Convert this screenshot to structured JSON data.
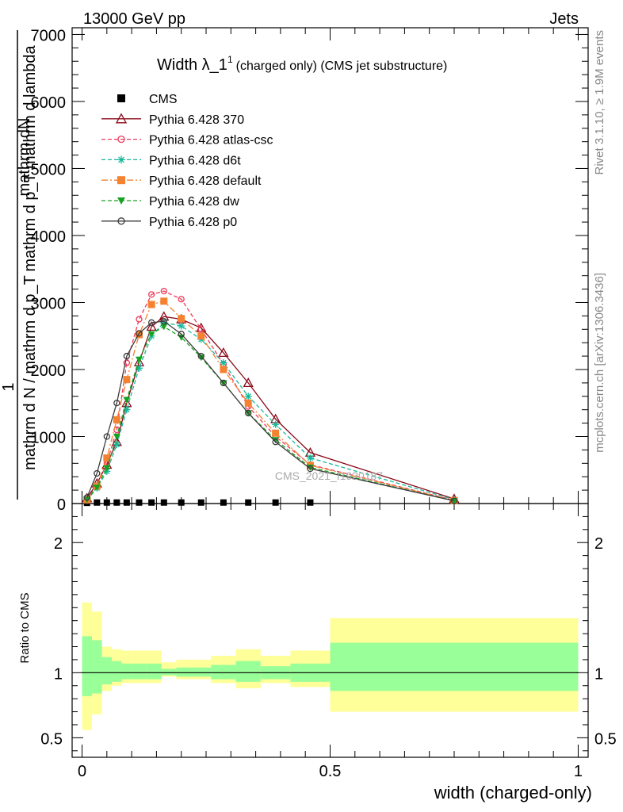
{
  "header": {
    "left": "13000 GeV pp",
    "right": "Jets"
  },
  "title": {
    "main": "Width λ_1",
    "sup": "1",
    "rest": "(charged only) (CMS jet substructure)"
  },
  "side_labels": {
    "right_top": "Rivet 3.1.10, ≥ 1.9M events",
    "right_bottom": "mcplots.cern.ch [arXiv:1306.3436]"
  },
  "watermark": "CMS_2021_I1920187",
  "ylabel_main": {
    "num_one": "1",
    "num_rest": "mathrm dN",
    "num_second": "mathrm d p_T mathrm d lambda",
    "den": "mathrm d N / mathrm d p_T"
  },
  "ratio_ylabel": "Ratio to CMS",
  "xlabel": "width (charged-only)",
  "chart_data": [
    {
      "type": "line",
      "panel": "main",
      "xlim": [
        -0.02,
        1.02
      ],
      "ylim": [
        0,
        7100
      ],
      "yticks": [
        0,
        1000,
        2000,
        3000,
        4000,
        5000,
        6000,
        7000
      ],
      "ytick_labels": [
        "0",
        "1000",
        "2000",
        "3000",
        "4000",
        "5000",
        "6000",
        "7000"
      ],
      "x": [
        0.01,
        0.03,
        0.05,
        0.07,
        0.09,
        0.115,
        0.14,
        0.165,
        0.2,
        0.24,
        0.285,
        0.335,
        0.39,
        0.46,
        0.75
      ],
      "series": [
        {
          "name": "CMS",
          "color": "#000000",
          "marker": "square",
          "dash": "none",
          "values": [
            10,
            15,
            15,
            15,
            15,
            15,
            15,
            15,
            15,
            15,
            15,
            15,
            15,
            15,
            null
          ]
        },
        {
          "name": "Pythia 6.428 370",
          "color": "#8b0a1a",
          "marker": "triangle",
          "dash": "solid",
          "values": [
            80,
            300,
            580,
            920,
            1500,
            2110,
            2640,
            2790,
            2750,
            2620,
            2250,
            1800,
            1260,
            760,
            70
          ]
        },
        {
          "name": "Pythia 6.428 atlas-csc",
          "color": "#ee3a5a",
          "marker": "circle",
          "dash": "dashed",
          "values": [
            60,
            260,
            600,
            1100,
            2100,
            2750,
            3120,
            3170,
            3050,
            2600,
            2080,
            1450,
            1000,
            580,
            50
          ]
        },
        {
          "name": "Pythia 6.428 d6t",
          "color": "#17b89a",
          "marker": "asterisk",
          "dash": "dashed",
          "values": [
            50,
            230,
            480,
            880,
            1400,
            2020,
            2500,
            2700,
            2650,
            2450,
            2100,
            1600,
            1180,
            680,
            60
          ]
        },
        {
          "name": "Pythia 6.428 default",
          "color": "#f58231",
          "marker": "square",
          "dash": "dashdot",
          "values": [
            55,
            260,
            680,
            1250,
            1850,
            2520,
            2970,
            3020,
            2760,
            2500,
            2000,
            1500,
            1050,
            570,
            45
          ]
        },
        {
          "name": "Pythia 6.428 dw",
          "color": "#17a321",
          "marker": "triangle-down",
          "dash": "dashed",
          "values": [
            60,
            240,
            530,
            1000,
            1550,
            2150,
            2530,
            2640,
            2480,
            2180,
            1800,
            1350,
            950,
            540,
            40
          ]
        },
        {
          "name": "Pythia 6.428 p0",
          "color": "#3c3c3c",
          "marker": "open-circle",
          "dash": "solid",
          "values": [
            90,
            450,
            1000,
            1500,
            2200,
            2540,
            2700,
            2720,
            2530,
            2200,
            1800,
            1350,
            920,
            520,
            40
          ]
        }
      ]
    },
    {
      "type": "area",
      "panel": "ratio",
      "xlim": [
        -0.02,
        1.02
      ],
      "ylim": [
        0.35,
        2.3
      ],
      "yticks": [
        0.5,
        1,
        2
      ],
      "ytick_labels": [
        "0.5",
        "1",
        "2"
      ],
      "xticks": [
        0,
        0.5,
        1
      ],
      "xtick_labels": [
        "0",
        "0.5",
        "1"
      ],
      "bin_edges": [
        0.0,
        0.02,
        0.04,
        0.06,
        0.08,
        0.1,
        0.13,
        0.16,
        0.19,
        0.23,
        0.26,
        0.31,
        0.36,
        0.42,
        0.5,
        1.0
      ],
      "band_outer": {
        "name": "total uncertainty",
        "color": "#ffff99",
        "lo": [
          0.56,
          0.68,
          0.86,
          0.9,
          0.92,
          0.92,
          0.92,
          0.97,
          0.95,
          0.95,
          0.92,
          0.88,
          0.92,
          0.89,
          0.7
        ],
        "hi": [
          1.54,
          1.47,
          1.2,
          1.18,
          1.17,
          1.17,
          1.17,
          1.08,
          1.1,
          1.1,
          1.13,
          1.18,
          1.13,
          1.17,
          1.42
        ]
      },
      "band_inner": {
        "name": "stat uncertainty",
        "color": "#99ff99",
        "lo": [
          0.82,
          0.84,
          0.91,
          0.93,
          0.95,
          0.95,
          0.95,
          0.98,
          0.97,
          0.97,
          0.95,
          0.93,
          0.95,
          0.93,
          0.86
        ],
        "hi": [
          1.28,
          1.25,
          1.12,
          1.09,
          1.07,
          1.07,
          1.07,
          1.03,
          1.04,
          1.04,
          1.06,
          1.09,
          1.05,
          1.07,
          1.23
        ]
      },
      "reference_line": 1
    }
  ]
}
